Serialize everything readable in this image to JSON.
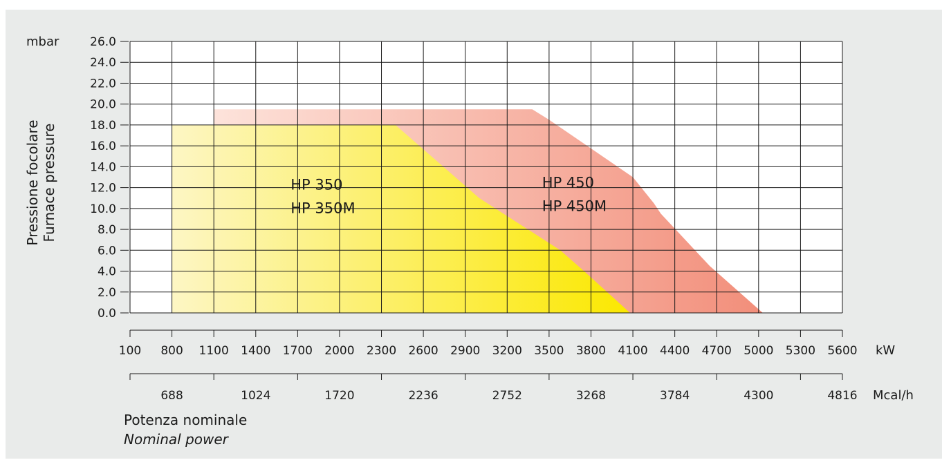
{
  "chart_data": {
    "type": "area",
    "title": "",
    "y_unit": "mbar",
    "ylabel": [
      "Pressione focolare",
      "Furnace pressure"
    ],
    "ylim": [
      0,
      26
    ],
    "y_ticks": [
      "26.0",
      "24.0",
      "22.0",
      "20.0",
      "18.0",
      "16.0",
      "14.0",
      "12.0",
      "10.0",
      "8.0",
      "6.0",
      "4.0",
      "2.0",
      "0.0"
    ],
    "x_unit": "kW",
    "x_ticks": [
      "100",
      "800",
      "1100",
      "1400",
      "1700",
      "2000",
      "2300",
      "2600",
      "2900",
      "3200",
      "3500",
      "3800",
      "4100",
      "4400",
      "4700",
      "5000",
      "5300",
      "5600"
    ],
    "x2_unit": "Mcal/h",
    "x2_ticks": [
      "688",
      "1024",
      "1720",
      "2236",
      "2752",
      "3268",
      "3784",
      "4300",
      "4816"
    ],
    "xlabel": [
      "Potenza nominale",
      "Nominal power"
    ],
    "grid": true,
    "series": [
      {
        "name": "HP 450 / HP 450M",
        "labels": [
          "HP 450",
          "HP 450M"
        ],
        "color": "#f0806a",
        "points": [
          [
            1100,
            19.5
          ],
          [
            3380,
            19.5
          ],
          [
            3500,
            18.5
          ],
          [
            4100,
            13.0
          ],
          [
            4250,
            10.5
          ],
          [
            4300,
            9.5
          ],
          [
            4650,
            4.5
          ],
          [
            5030,
            0.0
          ]
        ],
        "base_from": 1100,
        "label_at": [
          3450,
          12.0
        ]
      },
      {
        "name": "HP 350 / HP 350M",
        "labels": [
          "HP 350",
          "HP 350M"
        ],
        "color": "#fbe800",
        "points": [
          [
            800,
            18.0
          ],
          [
            2400,
            18.0
          ],
          [
            3000,
            11.0
          ],
          [
            3580,
            6.0
          ],
          [
            3750,
            4.0
          ],
          [
            4080,
            0.0
          ]
        ],
        "base_from": 800,
        "label_at": [
          1650,
          11.8
        ]
      }
    ]
  }
}
